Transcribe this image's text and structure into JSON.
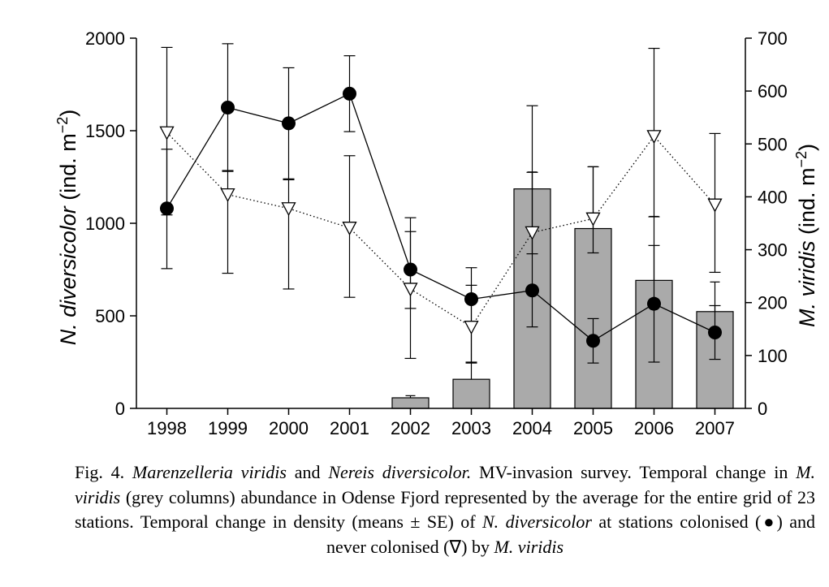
{
  "chart_data": {
    "type": "bar",
    "categories": [
      "1998",
      "1999",
      "2000",
      "2001",
      "2002",
      "2003",
      "2004",
      "2005",
      "2006",
      "2007"
    ],
    "left_axis": {
      "label_italic": "N. diversicolor",
      "label_rest": " (ind. m",
      "label_sup": "−2",
      "label_close": ")",
      "range": [
        0,
        2000
      ],
      "ticks": [
        0,
        500,
        1000,
        1500,
        2000
      ],
      "tick_labels": [
        "0",
        "500",
        "1000",
        "1500",
        "2000"
      ]
    },
    "right_axis": {
      "label_italic": "M. viridis",
      "label_rest": " (ind. m",
      "label_sup": "−2",
      "label_close": ")",
      "range": [
        0,
        700
      ],
      "ticks": [
        0,
        100,
        200,
        300,
        400,
        500,
        600,
        700
      ],
      "tick_labels": [
        "0",
        "100",
        "200",
        "300",
        "400",
        "500",
        "600",
        "700"
      ]
    },
    "series": [
      {
        "type": "bar",
        "axis": "right",
        "color": "#aaaaaa",
        "values": [
          0,
          0,
          0,
          0,
          20,
          55,
          415,
          340,
          242,
          183
        ],
        "err_upper": [
          null,
          null,
          null,
          null,
          24,
          86,
          447,
          457,
          363,
          239
        ]
      },
      {
        "type": "line",
        "axis": "left",
        "marker": "filled-circle",
        "line_style": "solid",
        "values": [
          1080,
          1625,
          1540,
          1700,
          750,
          590,
          637,
          365,
          565,
          410
        ],
        "err_low": [
          755,
          1285,
          1240,
          1495,
          540,
          245,
          440,
          245,
          250,
          265
        ],
        "err_high": [
          1400,
          1970,
          1840,
          1905,
          955,
          760,
          1275,
          485,
          880,
          555
        ]
      },
      {
        "type": "line",
        "axis": "left",
        "marker": "open-triangle-down",
        "line_style": "dotted",
        "values": [
          1490,
          1155,
          1080,
          975,
          645,
          440,
          950,
          1025,
          1470,
          1100
        ],
        "err_low": [
          1045,
          730,
          645,
          600,
          270,
          250,
          835,
          840,
          1035,
          735
        ],
        "err_high": [
          1950,
          1280,
          1235,
          1365,
          1030,
          665,
          1635,
          1305,
          1945,
          1485
        ]
      }
    ]
  },
  "caption": {
    "fig_label": "Fig. 4.",
    "species1": "Marenzelleria viridis",
    "and_text": " and ",
    "species2": "Nereis diversicolor.",
    "text1": " MV-invasion survey. Temporal change in ",
    "mv1": "M. viridis",
    "text2": " (grey columns) abundance in Odense Fjord represented by the average for the entire grid of 23 stations. Temporal change in density (means ± SE) of ",
    "nd1": "N. diversicolor",
    "text3": " at stations colonised (●) and never colonised (∇) by ",
    "mv2": "M. viridis"
  }
}
